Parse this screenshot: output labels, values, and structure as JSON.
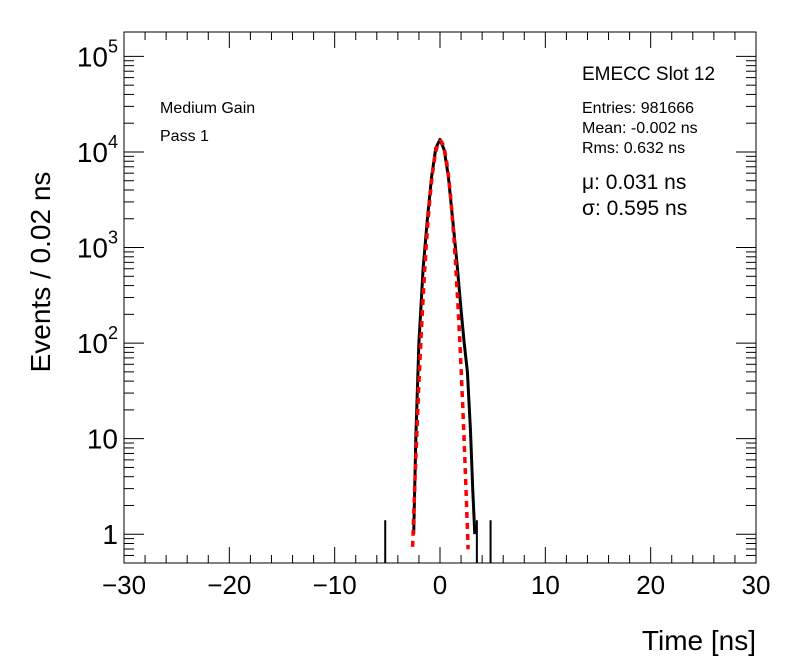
{
  "chart_data": {
    "type": "line",
    "title": "",
    "xlabel": "Time [ns]",
    "ylabel": "Events / 0.02 ns",
    "xlim": [
      -30,
      30
    ],
    "ylim": [
      0.5,
      180000
    ],
    "ylog": true,
    "grid": false,
    "x_ticks": [
      {
        "value": -30,
        "label": "−30"
      },
      {
        "value": -20,
        "label": "−20"
      },
      {
        "value": -10,
        "label": "−10"
      },
      {
        "value": 0,
        "label": "0"
      },
      {
        "value": 10,
        "label": "10"
      },
      {
        "value": 20,
        "label": "20"
      },
      {
        "value": 30,
        "label": "30"
      }
    ],
    "y_ticks": [
      {
        "value": 1,
        "label": "1",
        "exp": ""
      },
      {
        "value": 10,
        "label": "10",
        "exp": ""
      },
      {
        "value": 100,
        "label": "10",
        "exp": "2"
      },
      {
        "value": 1000,
        "label": "10",
        "exp": "3"
      },
      {
        "value": 10000,
        "label": "10",
        "exp": "4"
      },
      {
        "value": 100000,
        "label": "10",
        "exp": "5"
      }
    ],
    "annotations": {
      "slot": "EMECC Slot 12",
      "gain": "Medium Gain",
      "pass": "Pass 1",
      "entries": "Entries: 981666",
      "mean": "Mean: -0.002 ns",
      "rms": "Rms: 0.632 ns",
      "mu": "μ: 0.031 ns",
      "sigma": "σ: 0.595 ns"
    },
    "series": [
      {
        "color": "#000000",
        "style": "solid",
        "x": [
          -2.5,
          -2.3,
          -2.0,
          -1.6,
          -1.2,
          -0.8,
          -0.4,
          0.0,
          0.4,
          0.8,
          1.2,
          1.6,
          2.0,
          2.3,
          2.6,
          2.9,
          3.1,
          3.3
        ],
        "values": [
          1,
          10,
          100,
          600,
          2000,
          5500,
          11000,
          13500,
          10500,
          5500,
          2000,
          700,
          220,
          100,
          50,
          12,
          3,
          1
        ]
      },
      {
        "color": "#ff0000",
        "style": "dashed",
        "mu": 0.031,
        "sigma": 0.595,
        "peak": 13000,
        "xrange": [
          -2.6,
          2.67
        ]
      }
    ],
    "isolated_entries": [
      {
        "x": -5.2,
        "value": 1
      },
      {
        "x": 3.5,
        "value": 1
      },
      {
        "x": 4.8,
        "value": 1
      }
    ]
  }
}
